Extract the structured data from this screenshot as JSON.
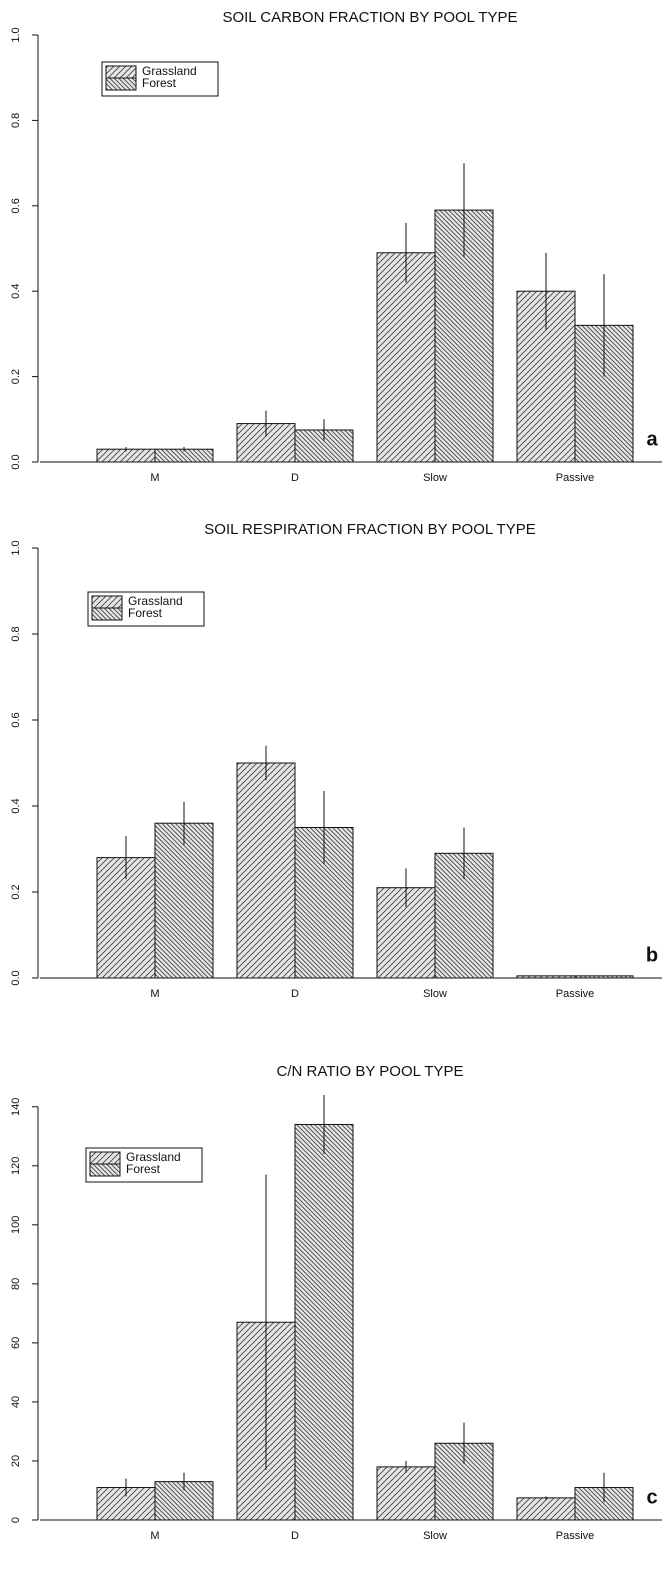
{
  "chart_data": [
    {
      "type": "bar",
      "title": "SOIL CARBON FRACTION BY POOL TYPE",
      "panel_label": "a",
      "categories": [
        "M",
        "D",
        "Slow",
        "Passive"
      ],
      "series": [
        {
          "name": "Grassland",
          "color": "#444444",
          "values": [
            0.03,
            0.09,
            0.49,
            0.4
          ],
          "errors": [
            0.005,
            0.03,
            0.07,
            0.09
          ]
        },
        {
          "name": "Forest",
          "color": "#444444",
          "values": [
            0.03,
            0.075,
            0.59,
            0.32
          ],
          "errors": [
            0.005,
            0.025,
            0.11,
            0.12
          ]
        }
      ],
      "ylim": [
        0,
        1
      ],
      "yticks": [
        {
          "value": 0,
          "label": "0.0"
        },
        0.2,
        0.4,
        0.6,
        0.8,
        {
          "value": 1,
          "label": "1.0"
        }
      ],
      "legend": "upper left"
    },
    {
      "type": "bar",
      "title": "SOIL RESPIRATION FRACTION BY POOL TYPE",
      "panel_label": "b",
      "categories": [
        "M",
        "D",
        "Slow",
        "Passive"
      ],
      "series": [
        {
          "name": "Grassland",
          "color": "#444444",
          "values": [
            0.28,
            0.5,
            0.21,
            0.005
          ],
          "errors": [
            0.05,
            0.04,
            0.045,
            0
          ]
        },
        {
          "name": "Forest",
          "color": "#444444",
          "values": [
            0.36,
            0.35,
            0.29,
            0.005
          ],
          "errors": [
            0.05,
            0.085,
            0.06,
            0
          ]
        }
      ],
      "ylim": [
        0,
        1
      ],
      "yticks": [
        {
          "value": 0,
          "label": "0.0"
        },
        0.2,
        0.4,
        0.6,
        0.8,
        {
          "value": 1,
          "label": "1.0"
        }
      ],
      "legend": "upper left"
    },
    {
      "type": "bar",
      "title": "C/N RATIO BY POOL TYPE",
      "panel_label": "c",
      "categories": [
        "M",
        "D",
        "Slow",
        "Passive"
      ],
      "series": [
        {
          "name": "Grassland",
          "color": "#444444",
          "values": [
            11,
            67,
            18,
            7.5
          ],
          "errors": [
            3,
            50,
            2,
            0.5
          ]
        },
        {
          "name": "Forest",
          "color": "#444444",
          "values": [
            13,
            134,
            26,
            11
          ],
          "errors": [
            3,
            10,
            7,
            5
          ]
        }
      ],
      "ylim": [
        0,
        145
      ],
      "yticks": [
        0,
        20,
        40,
        60,
        80,
        100,
        120,
        140
      ],
      "legend": "upper left"
    }
  ]
}
